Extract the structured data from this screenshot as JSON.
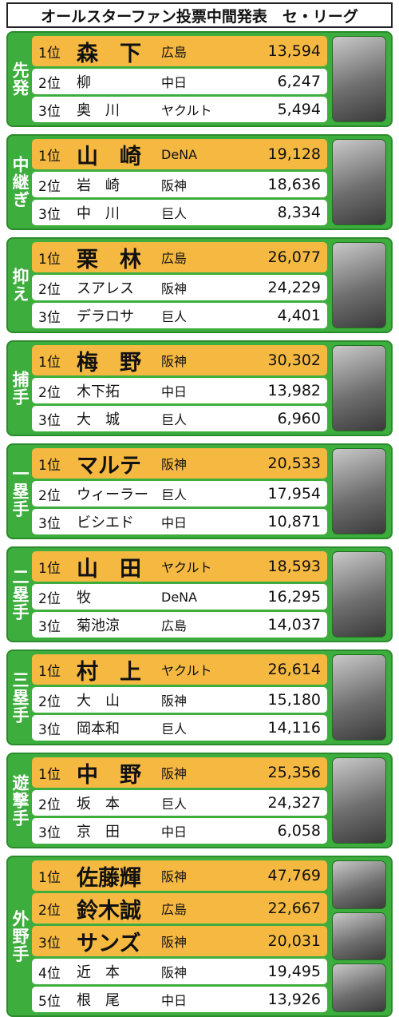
{
  "title": "オールスターファン投票中間発表　セ・リーグ",
  "sections": [
    {
      "label": "先発",
      "rows": [
        {
          "rank": "1位",
          "name": "森　下",
          "team": "広島",
          "votes": "13,594"
        },
        {
          "rank": "2位",
          "name": "柳",
          "team": "中日",
          "votes": "6,247"
        },
        {
          "rank": "3位",
          "name": "奥　川",
          "team": "ヤクルト",
          "votes": "5,494"
        }
      ]
    },
    {
      "label": "中継ぎ",
      "rows": [
        {
          "rank": "1位",
          "name": "山　崎",
          "team": "DeNA",
          "votes": "19,128"
        },
        {
          "rank": "2位",
          "name": "岩　崎",
          "team": "阪神",
          "votes": "18,636"
        },
        {
          "rank": "3位",
          "name": "中　川",
          "team": "巨人",
          "votes": "8,334"
        }
      ]
    },
    {
      "label": "抑え",
      "rows": [
        {
          "rank": "1位",
          "name": "栗　林",
          "team": "広島",
          "votes": "26,077"
        },
        {
          "rank": "2位",
          "name": "スアレス",
          "team": "阪神",
          "votes": "24,229"
        },
        {
          "rank": "3位",
          "name": "デラロサ",
          "team": "巨人",
          "votes": "4,401"
        }
      ]
    },
    {
      "label": "捕手",
      "rows": [
        {
          "rank": "1位",
          "name": "梅　野",
          "team": "阪神",
          "votes": "30,302"
        },
        {
          "rank": "2位",
          "name": "木下拓",
          "team": "中日",
          "votes": "13,982"
        },
        {
          "rank": "3位",
          "name": "大　城",
          "team": "巨人",
          "votes": "6,960"
        }
      ]
    },
    {
      "label": "一塁手",
      "rows": [
        {
          "rank": "1位",
          "name": "マルテ",
          "team": "阪神",
          "votes": "20,533"
        },
        {
          "rank": "2位",
          "name": "ウィーラー",
          "team": "巨人",
          "votes": "17,954"
        },
        {
          "rank": "3位",
          "name": "ビシエド",
          "team": "中日",
          "votes": "10,871"
        }
      ]
    },
    {
      "label": "二塁手",
      "rows": [
        {
          "rank": "1位",
          "name": "山　田",
          "team": "ヤクルト",
          "votes": "18,593"
        },
        {
          "rank": "2位",
          "name": "牧",
          "team": "DeNA",
          "votes": "16,295"
        },
        {
          "rank": "3位",
          "name": "菊池涼",
          "team": "広島",
          "votes": "14,037"
        }
      ]
    },
    {
      "label": "三塁手",
      "rows": [
        {
          "rank": "1位",
          "name": "村　上",
          "team": "ヤクルト",
          "votes": "26,614"
        },
        {
          "rank": "2位",
          "name": "大　山",
          "team": "阪神",
          "votes": "15,180"
        },
        {
          "rank": "3位",
          "name": "岡本和",
          "team": "巨人",
          "votes": "14,116"
        }
      ]
    },
    {
      "label": "遊撃手",
      "rows": [
        {
          "rank": "1位",
          "name": "中　野",
          "team": "阪神",
          "votes": "25,356"
        },
        {
          "rank": "2位",
          "name": "坂　本",
          "team": "巨人",
          "votes": "24,327"
        },
        {
          "rank": "3位",
          "name": "京　田",
          "team": "中日",
          "votes": "6,058"
        }
      ]
    },
    {
      "label": "外野手",
      "rows": [
        {
          "rank": "1位",
          "name": "佐藤輝",
          "team": "阪神",
          "votes": "47,769"
        },
        {
          "rank": "2位",
          "name": "鈴木誠",
          "team": "広島",
          "votes": "22,667"
        },
        {
          "rank": "3位",
          "name": "サンズ",
          "team": "阪神",
          "votes": "20,031"
        },
        {
          "rank": "4位",
          "name": "近　本",
          "team": "阪神",
          "votes": "19,495"
        },
        {
          "rank": "5位",
          "name": "根　尾",
          "team": "中日",
          "votes": "13,926"
        }
      ]
    }
  ]
}
